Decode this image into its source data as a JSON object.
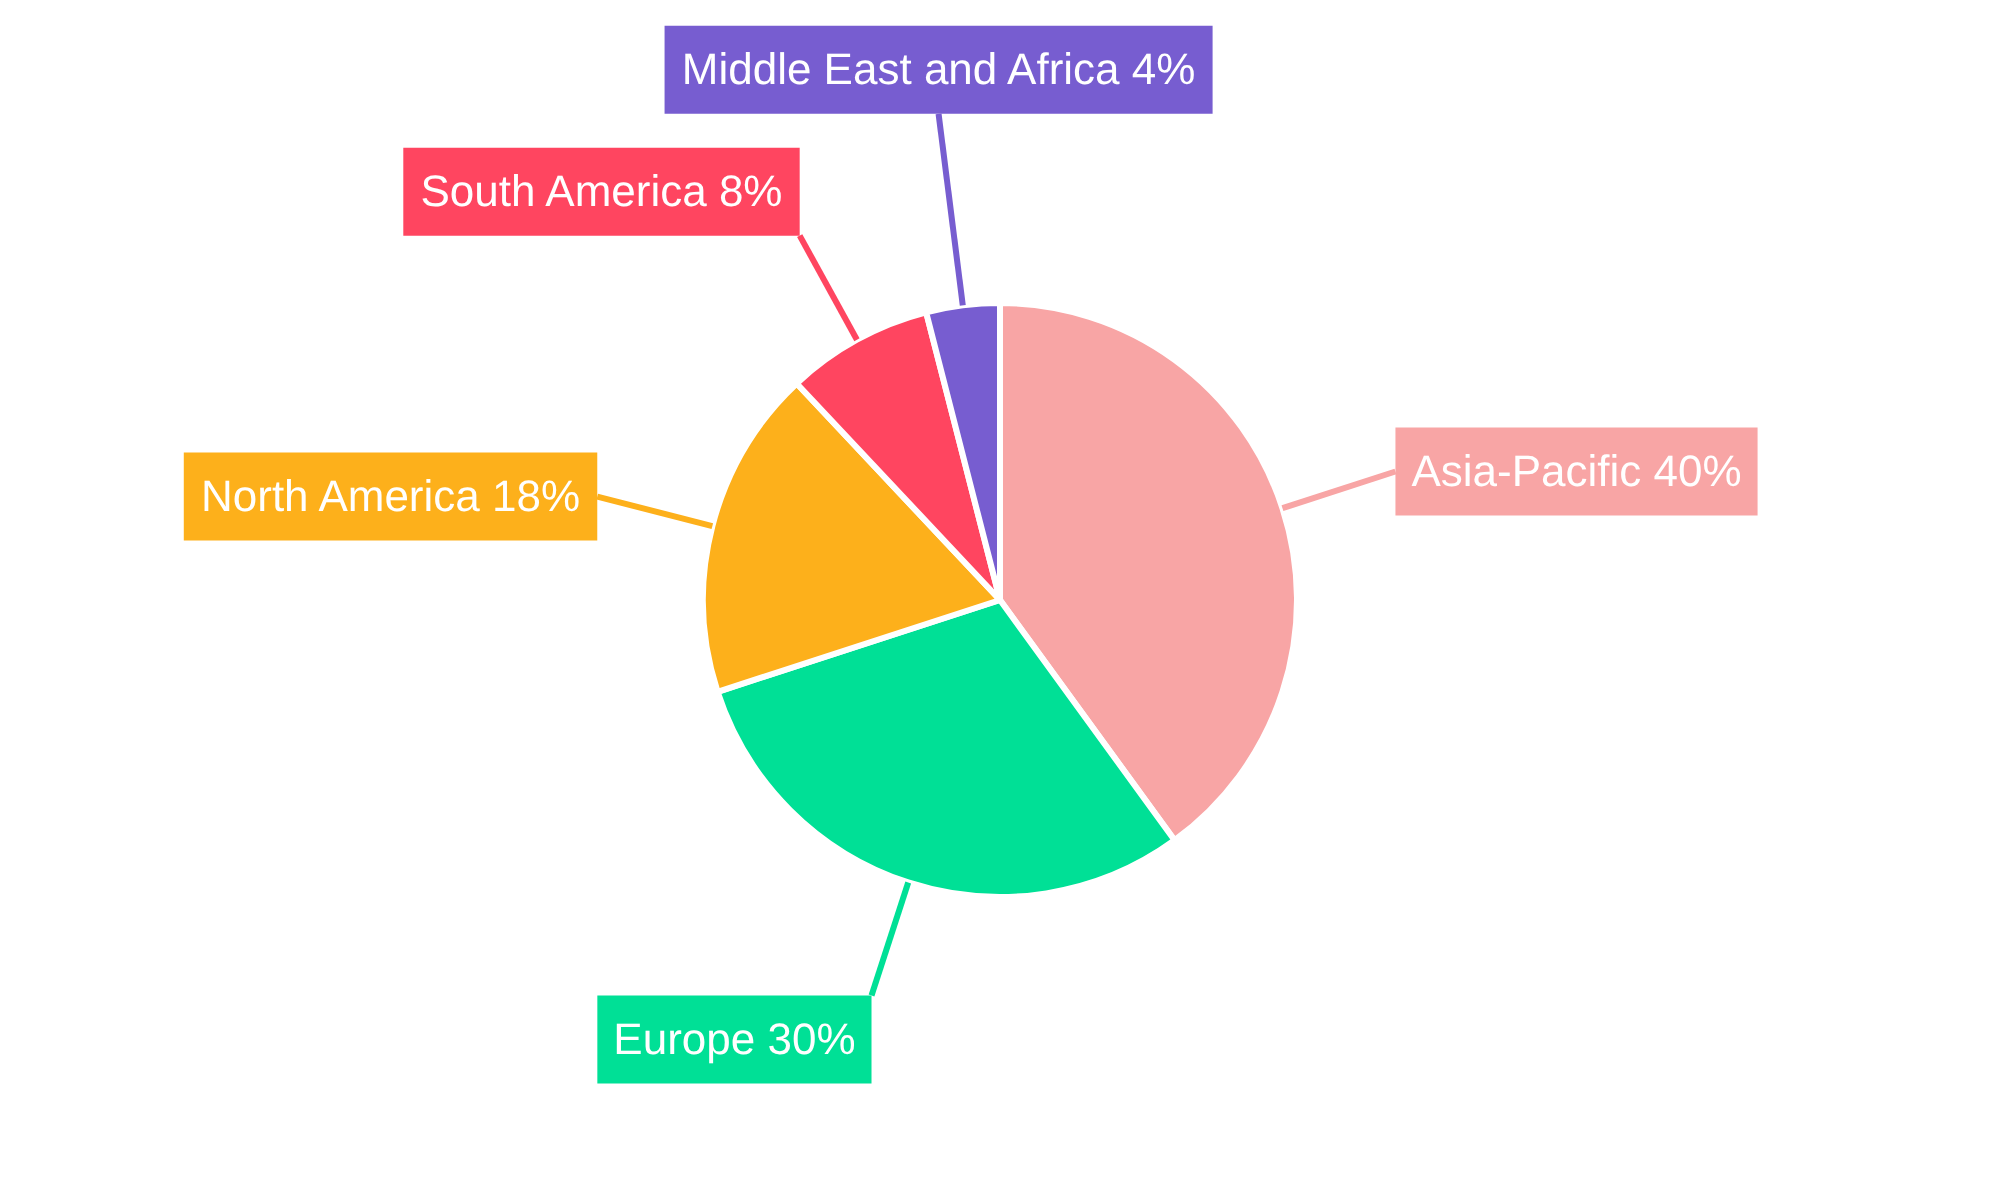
{
  "chart_data": {
    "type": "pie",
    "categories": [
      "Asia-Pacific",
      "Europe",
      "North America",
      "South America",
      "Middle East and Africa"
    ],
    "values": [
      40,
      30,
      18,
      8,
      4
    ],
    "colors": [
      "#f8a5a5",
      "#00e096",
      "#fdb01b",
      "#ff4560",
      "#775dd0"
    ],
    "value_labels": [
      "40%",
      "30%",
      "18%",
      "8%",
      "4%"
    ],
    "legend": false
  }
}
